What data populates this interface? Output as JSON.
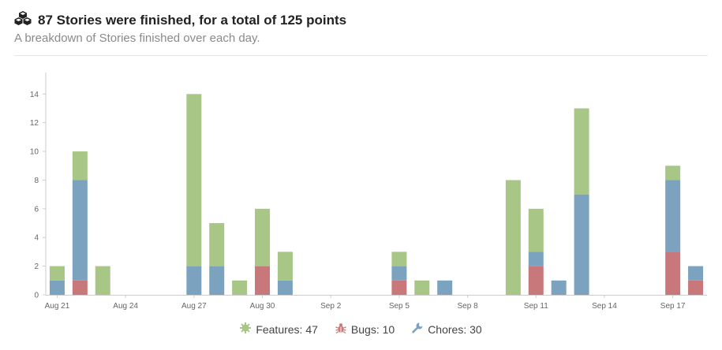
{
  "header": {
    "title": "87 Stories were finished, for a total of 125 points",
    "subtitle": "A breakdown of Stories finished over each day."
  },
  "legend": {
    "features": "Features: 47",
    "bugs": "Bugs: 10",
    "chores": "Chores: 30"
  },
  "colors": {
    "features": "#a8c686",
    "bugs": "#c8787a",
    "chores": "#7ba3bf"
  },
  "chart_data": {
    "type": "bar",
    "stacked": true,
    "categories": [
      "Aug 21",
      "Aug 22",
      "Aug 23",
      "Aug 24",
      "Aug 25",
      "Aug 26",
      "Aug 27",
      "Aug 28",
      "Aug 29",
      "Aug 30",
      "Aug 31",
      "Sep 1",
      "Sep 2",
      "Sep 3",
      "Sep 4",
      "Sep 5",
      "Sep 6",
      "Sep 7",
      "Sep 8",
      "Sep 9",
      "Sep 10",
      "Sep 11",
      "Sep 12",
      "Sep 13",
      "Sep 14",
      "Sep 15",
      "Sep 16",
      "Sep 17",
      "Sep 18"
    ],
    "series": [
      {
        "name": "Bugs",
        "color": "#c8787a",
        "values": [
          0,
          1,
          0,
          0,
          0,
          0,
          0,
          0,
          0,
          2,
          0,
          0,
          0,
          0,
          0,
          1,
          0,
          0,
          0,
          0,
          0,
          2,
          0,
          0,
          0,
          0,
          0,
          3,
          1
        ]
      },
      {
        "name": "Chores",
        "color": "#7ba3bf",
        "values": [
          1,
          7,
          0,
          0,
          0,
          0,
          2,
          2,
          0,
          0,
          1,
          0,
          0,
          0,
          0,
          1,
          0,
          1,
          0,
          0,
          0,
          1,
          1,
          7,
          0,
          0,
          0,
          5,
          1
        ]
      },
      {
        "name": "Features",
        "color": "#a8c686",
        "values": [
          1,
          2,
          2,
          0,
          0,
          0,
          12,
          3,
          1,
          4,
          2,
          0,
          0,
          0,
          0,
          1,
          1,
          0,
          0,
          0,
          8,
          3,
          0,
          6,
          0,
          0,
          0,
          1,
          0
        ]
      }
    ],
    "x_tick_labels": [
      "Aug 21",
      "Aug 24",
      "Aug 27",
      "Aug 30",
      "Sep 2",
      "Sep 5",
      "Sep 8",
      "Sep 11",
      "Sep 14",
      "Sep 17"
    ],
    "y_ticks": [
      0,
      2,
      4,
      6,
      8,
      10,
      12,
      14
    ],
    "ylim": [
      0,
      15.5
    ],
    "grid": false
  }
}
